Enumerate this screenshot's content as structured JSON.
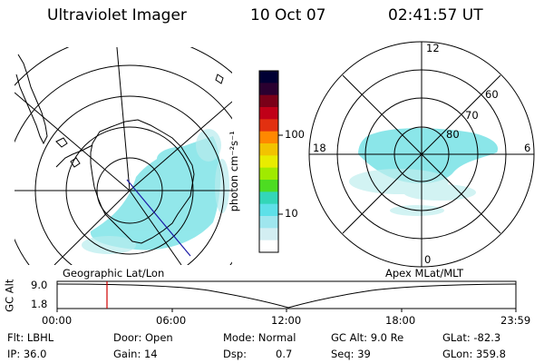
{
  "header": {
    "instrument": "Ultraviolet Imager",
    "date": "10 Oct 07",
    "time": "02:41:57 UT"
  },
  "left_map": {
    "label": "Geographic Lat/Lon"
  },
  "colorbar": {
    "unit_label": "photon cm⁻²s⁻¹",
    "tick_100": "100",
    "tick_10": "10",
    "colors": [
      "#000033",
      "#2a0030",
      "#7a0018",
      "#c00018",
      "#e23010",
      "#ff8800",
      "#f2c300",
      "#e8ec00",
      "#a0ea00",
      "#4ddc22",
      "#33d6b8",
      "#5ee0e8",
      "#9fe6ee",
      "#d3eef2",
      "#ffffff"
    ]
  },
  "right_map": {
    "label": "Apex MLat/MLT",
    "mlt_12": "12",
    "mlt_18": "18",
    "mlt_6": "6",
    "mlt_0": "0",
    "lat_60": "60",
    "lat_70": "70",
    "lat_80": "80"
  },
  "altitude_plot": {
    "ylabel": "GC Alt",
    "y_top": "9.0",
    "y_bottom": "1.8",
    "x_ticks": [
      "00:00",
      "06:00",
      "12:00",
      "18:00",
      "23:59"
    ],
    "marker_color": "#d00000"
  },
  "status": {
    "flt": "Flt: LBHL",
    "door": "Door: Open",
    "mode": "Mode: Normal",
    "gc_alt": "GC Alt: 9.0 Re",
    "glat": "GLat: -82.3",
    "ip": "IP: 36.0",
    "gain": "Gain: 14",
    "dsp_label": "Dsp:",
    "dsp_value": "0.7",
    "seq": "Seq: 39",
    "glon": "GLon: 359.8"
  }
}
